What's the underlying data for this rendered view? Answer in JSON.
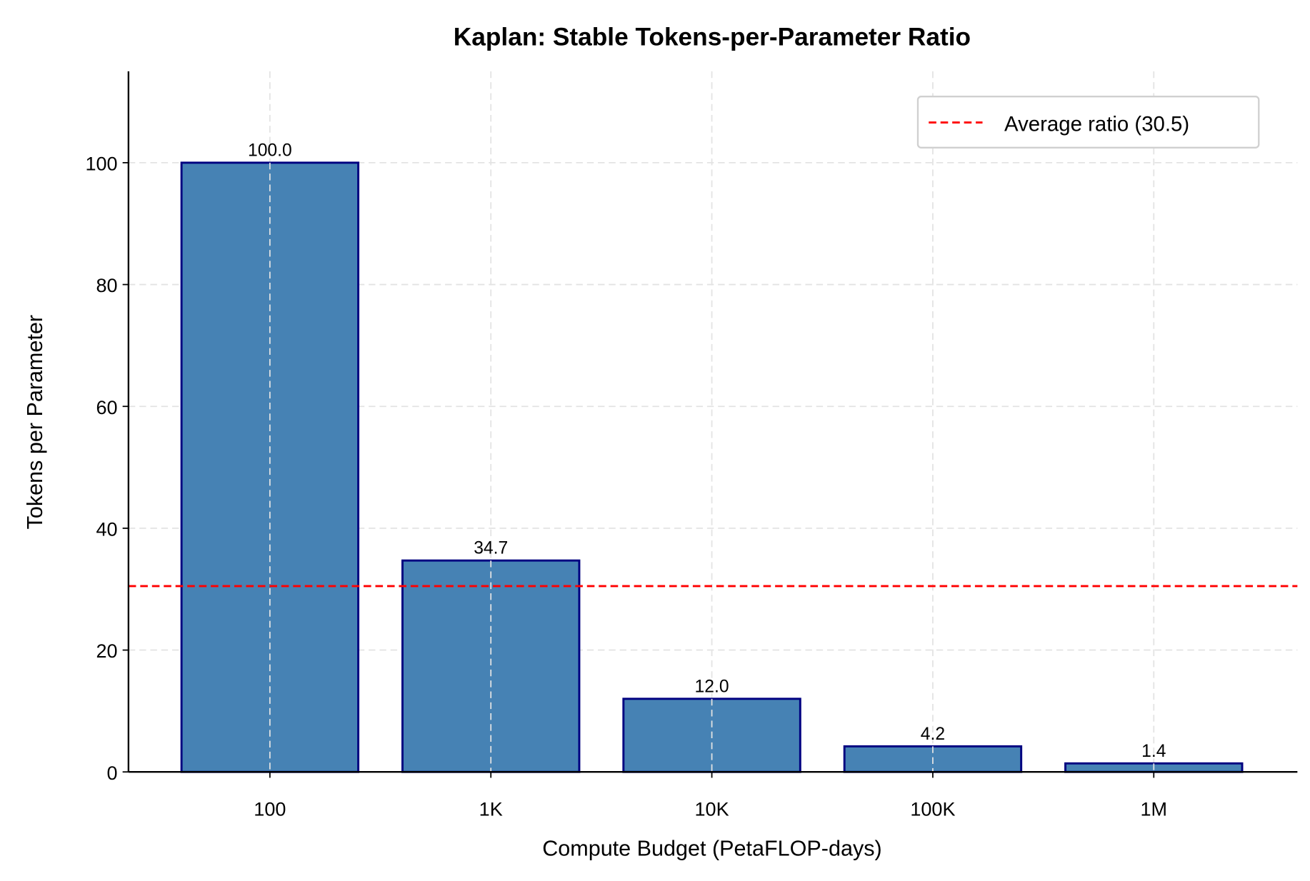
{
  "chart_data": {
    "type": "bar",
    "title": "Kaplan: Stable Tokens-per-Parameter Ratio",
    "xlabel": "Compute Budget (PetaFLOP-days)",
    "ylabel": "Tokens per Parameter",
    "categories": [
      "100",
      "1K",
      "10K",
      "100K",
      "1M"
    ],
    "values": [
      100.0,
      34.7,
      12.0,
      4.2,
      1.4
    ],
    "value_labels": [
      "100.0",
      "34.7",
      "12.0",
      "4.2",
      "1.4"
    ],
    "ylim": [
      0,
      115
    ],
    "yticks": [
      0,
      20,
      40,
      60,
      80,
      100
    ],
    "grid": true,
    "legend_position": "top-right",
    "reference_line": {
      "name": "Average ratio (30.5)",
      "value": 30.5,
      "style": "dashed"
    },
    "colors": {
      "bar_fill": "#4682b4",
      "bar_edge": "#000080",
      "reference_line": "#ff0000",
      "grid": "#e3e3e3"
    }
  }
}
